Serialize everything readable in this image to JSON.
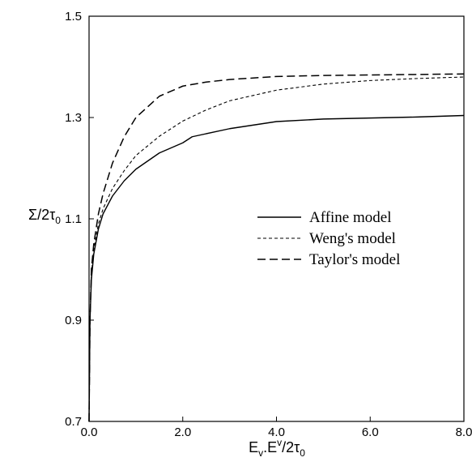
{
  "chart_data": {
    "type": "line",
    "title": "",
    "xlabel": {
      "base": "E",
      "sub1": "v",
      "mid": ".E",
      "sup": "v",
      "tail": "/2τ",
      "sub2": "0"
    },
    "ylabel": {
      "base": "Σ/2τ",
      "sub": "0"
    },
    "xlim": [
      0,
      8
    ],
    "ylim": [
      0.7,
      1.5
    ],
    "x_ticks": [
      "0.0",
      "2.0",
      "4.0",
      "6.0",
      "8.0"
    ],
    "y_ticks": [
      "0.7",
      "0.9",
      "1.1",
      "1.3",
      "1.5"
    ],
    "x_tick_values": [
      0,
      2,
      4,
      6,
      8
    ],
    "y_tick_values": [
      0.7,
      0.9,
      1.1,
      1.3,
      1.5
    ],
    "grid": false,
    "legend_position": "right-middle",
    "series": [
      {
        "name": "Affine model",
        "style": "solid",
        "x": [
          0,
          0.02,
          0.05,
          0.1,
          0.2,
          0.3,
          0.5,
          0.75,
          1.0,
          1.5,
          2.0,
          2.2,
          3.0,
          4.0,
          5.0,
          6.0,
          7.0,
          8.0
        ],
        "y": [
          0.7,
          0.9,
          0.98,
          1.03,
          1.08,
          1.11,
          1.145,
          1.175,
          1.198,
          1.23,
          1.25,
          1.262,
          1.278,
          1.292,
          1.297,
          1.299,
          1.301,
          1.304
        ]
      },
      {
        "name": "Weng's model",
        "style": "dashed",
        "x": [
          0,
          0.02,
          0.05,
          0.1,
          0.2,
          0.3,
          0.5,
          0.75,
          1.0,
          1.5,
          2.0,
          2.5,
          3.0,
          4.0,
          5.0,
          6.0,
          7.0,
          8.0
        ],
        "y": [
          0.7,
          0.9,
          0.99,
          1.04,
          1.09,
          1.12,
          1.16,
          1.195,
          1.225,
          1.263,
          1.293,
          1.315,
          1.333,
          1.354,
          1.366,
          1.373,
          1.377,
          1.38
        ]
      },
      {
        "name": "Taylor's model",
        "style": "longdash",
        "x": [
          0,
          0.02,
          0.05,
          0.1,
          0.2,
          0.3,
          0.5,
          0.75,
          1.0,
          1.5,
          2.0,
          2.5,
          3.0,
          4.0,
          5.0,
          6.0,
          7.0,
          8.0
        ],
        "y": [
          0.7,
          0.9,
          1.0,
          1.05,
          1.11,
          1.15,
          1.21,
          1.262,
          1.3,
          1.342,
          1.362,
          1.37,
          1.375,
          1.381,
          1.383,
          1.384,
          1.385,
          1.386
        ]
      }
    ]
  }
}
